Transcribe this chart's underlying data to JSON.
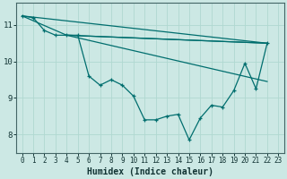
{
  "xlabel": "Humidex (Indice chaleur)",
  "background_color": "#cce8e4",
  "grid_color": "#b0d8d0",
  "line_color": "#006e6e",
  "xlim": [
    -0.5,
    23.5
  ],
  "ylim": [
    7.5,
    11.6
  ],
  "yticks": [
    8,
    9,
    10,
    11
  ],
  "xticks": [
    0,
    1,
    2,
    3,
    4,
    5,
    6,
    7,
    8,
    9,
    10,
    11,
    12,
    13,
    14,
    15,
    16,
    17,
    18,
    19,
    20,
    21,
    22,
    23
  ],
  "main_series": {
    "x": [
      0,
      1,
      2,
      3,
      4,
      5,
      6,
      7,
      8,
      9,
      10,
      11,
      12,
      13,
      14,
      15,
      16,
      17,
      18,
      19,
      20,
      21,
      22
    ],
    "y": [
      11.25,
      11.2,
      10.85,
      10.72,
      10.72,
      10.72,
      9.6,
      9.35,
      9.5,
      9.35,
      9.05,
      8.4,
      8.4,
      8.5,
      8.55,
      7.85,
      8.45,
      8.8,
      8.75,
      9.2,
      9.95,
      9.25,
      10.5
    ]
  },
  "straight_lines": [
    {
      "x": [
        0,
        22
      ],
      "y": [
        11.25,
        10.5
      ]
    },
    {
      "x": [
        4,
        22
      ],
      "y": [
        10.72,
        10.5
      ]
    },
    {
      "x": [
        4,
        22
      ],
      "y": [
        10.72,
        9.45
      ]
    },
    {
      "x": [
        0,
        4,
        22
      ],
      "y": [
        11.25,
        10.72,
        10.5
      ]
    }
  ]
}
